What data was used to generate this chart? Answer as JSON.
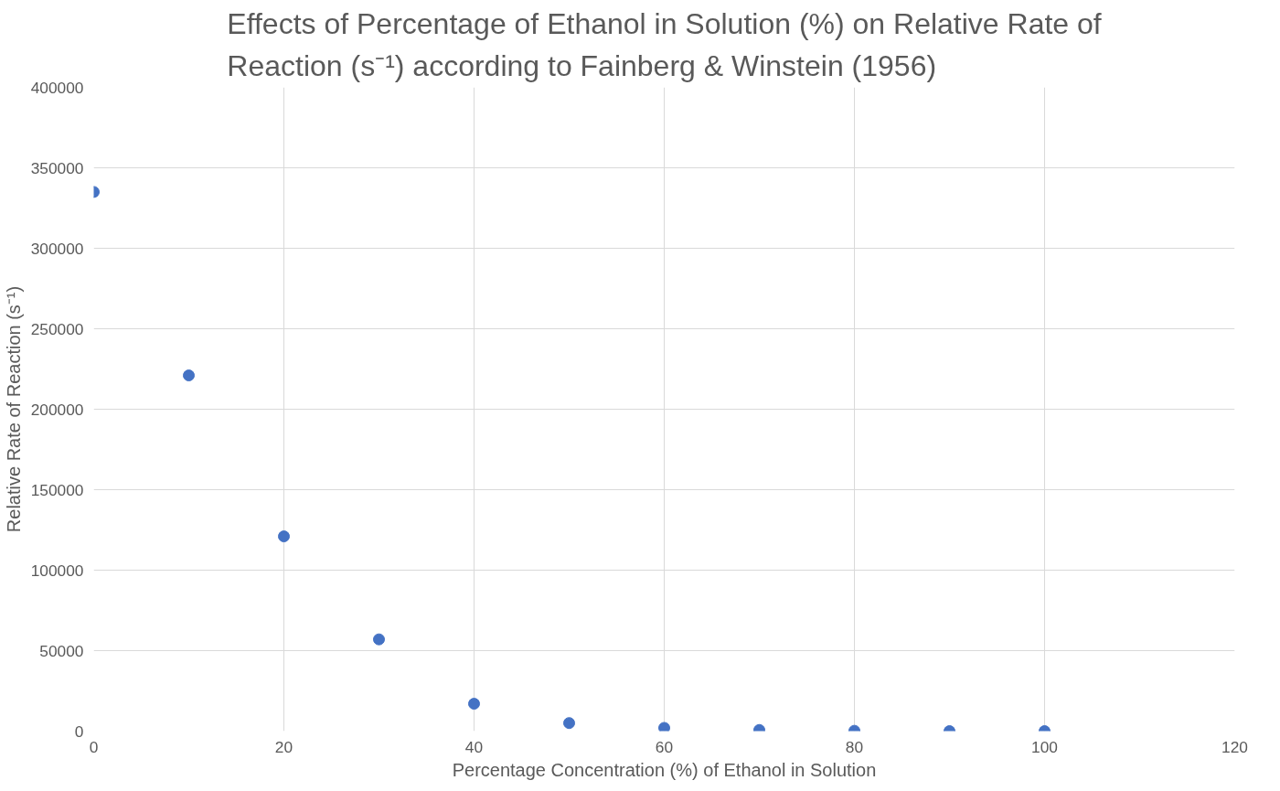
{
  "chart_data": {
    "type": "scatter",
    "title": "Effects of Percentage of Ethanol in Solution (%) on Relative Rate of Reaction (s⁻¹) according to Fainberg & Winstein (1956)",
    "xlabel": "Percentage Concentration (%) of Ethanol in Solution",
    "ylabel": "Relative Rate of Reaction (s⁻¹)",
    "x": [
      0,
      10,
      20,
      30,
      40,
      50,
      60,
      70,
      80,
      90,
      100
    ],
    "series": [
      {
        "color": "#4472c4",
        "values": [
          335000,
          221000,
          121000,
          57000,
          17000,
          5000,
          2000,
          700,
          200,
          0,
          0
        ]
      }
    ],
    "xlim": [
      0,
      120
    ],
    "xticks": [
      0,
      20,
      40,
      60,
      80,
      100,
      120
    ],
    "ylim": [
      0,
      400000
    ],
    "yticks": [
      0,
      50000,
      100000,
      150000,
      200000,
      250000,
      300000,
      350000,
      400000
    ],
    "grid": true,
    "marker": "circle"
  }
}
